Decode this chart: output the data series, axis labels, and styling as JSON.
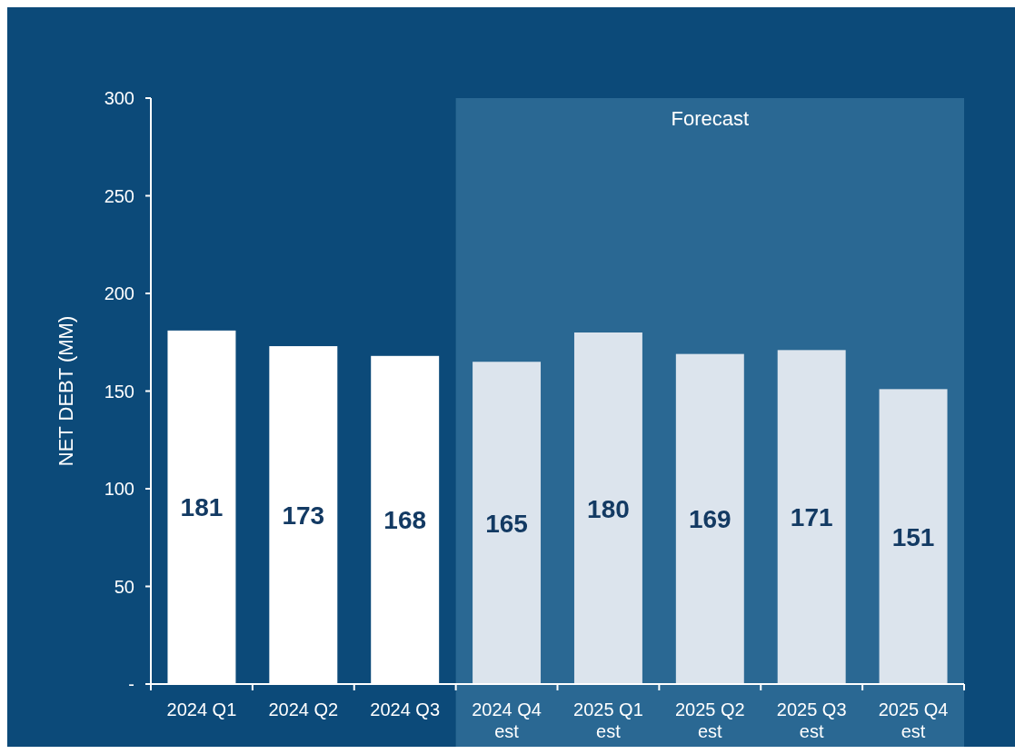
{
  "chart_data": {
    "type": "bar",
    "ylabel": "NET DEBT (MM)",
    "categories": [
      "2024 Q1",
      "2024 Q2",
      "2024 Q3",
      "2024 Q4\nest",
      "2025 Q1\nest",
      "2025 Q2\nest",
      "2025 Q3\nest",
      "2025 Q4\nest"
    ],
    "values": [
      181,
      173,
      168,
      165,
      180,
      169,
      171,
      151
    ],
    "colors": [
      "#ffffff",
      "#ffffff",
      "#ffffff",
      "#dce4ed",
      "#dce4ed",
      "#dce4ed",
      "#dce4ed",
      "#dce4ed"
    ],
    "ylim": [
      0,
      300
    ],
    "yticks": [
      {
        "value": 0,
        "label": "-"
      },
      50,
      100,
      150,
      200,
      250,
      300
    ],
    "bands": [
      {
        "axis": "x",
        "from": "2024 Q4\nest",
        "to": "2025 Q4\nest",
        "label": "Forecast",
        "color": "#2a6893"
      }
    ],
    "data_labels": true
  }
}
